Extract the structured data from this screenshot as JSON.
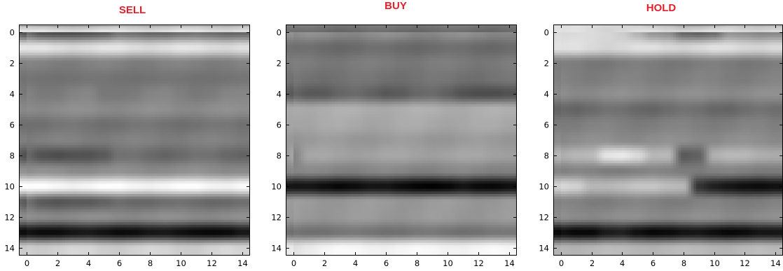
{
  "chart_data": [
    {
      "type": "heatmap",
      "title": "SELL",
      "colormap": "gray",
      "interpolation": "bicubic",
      "xlim": [
        -0.5,
        14.5
      ],
      "ylim": [
        14.5,
        -0.5
      ],
      "x_ticks": [
        0,
        2,
        4,
        6,
        8,
        10,
        12,
        14
      ],
      "y_ticks": [
        0,
        2,
        4,
        6,
        8,
        10,
        12,
        14
      ],
      "x_tick_labels": [
        "0",
        "2",
        "4",
        "6",
        "8",
        "10",
        "12",
        "14"
      ],
      "y_tick_labels": [
        "0",
        "2",
        "4",
        "6",
        "8",
        "10",
        "12",
        "14"
      ],
      "row_levels": [
        0.42,
        0.88,
        0.5,
        0.45,
        0.5,
        0.55,
        0.45,
        0.5,
        0.42,
        0.55,
        0.98,
        0.42,
        0.55,
        0.06,
        0.82
      ],
      "row_variation": [
        0.03,
        0.03,
        0.02,
        0.01,
        0.03,
        0.02,
        0.02,
        0.02,
        0.03,
        0.02,
        0.03,
        0.02,
        0.02,
        0.03,
        0.03
      ],
      "cells": [
        [
          0,
          1,
          0.32
        ],
        [
          0,
          2,
          0.3
        ],
        [
          0,
          3,
          0.3
        ],
        [
          0,
          4,
          0.32
        ],
        [
          0,
          5,
          0.35
        ],
        [
          4,
          5,
          0.47
        ],
        [
          4,
          6,
          0.47
        ],
        [
          8,
          1,
          0.32
        ],
        [
          8,
          2,
          0.3
        ],
        [
          8,
          3,
          0.32
        ],
        [
          8,
          4,
          0.32
        ],
        [
          8,
          5,
          0.35
        ],
        [
          11,
          1,
          0.35
        ],
        [
          11,
          2,
          0.33
        ],
        [
          11,
          3,
          0.35
        ],
        [
          11,
          4,
          0.35
        ],
        [
          11,
          5,
          0.38
        ],
        [
          13,
          11,
          0.03
        ],
        [
          13,
          12,
          0.02
        ],
        [
          13,
          13,
          0.03
        ]
      ]
    },
    {
      "type": "heatmap",
      "title": "BUY",
      "colormap": "gray",
      "interpolation": "bicubic",
      "xlim": [
        -0.5,
        14.5
      ],
      "ylim": [
        14.5,
        -0.5
      ],
      "x_ticks": [
        0,
        2,
        4,
        6,
        8,
        10,
        12,
        14
      ],
      "y_ticks": [
        0,
        2,
        4,
        6,
        8,
        10,
        12,
        14
      ],
      "x_tick_labels": [
        "0",
        "2",
        "4",
        "6",
        "8",
        "10",
        "12",
        "14"
      ],
      "y_tick_labels": [
        "0",
        "2",
        "4",
        "6",
        "8",
        "10",
        "12",
        "14"
      ],
      "row_levels": [
        0.55,
        0.42,
        0.48,
        0.45,
        0.38,
        0.68,
        0.66,
        0.6,
        0.64,
        0.52,
        0.05,
        0.6,
        0.6,
        0.45,
        0.96
      ],
      "row_variation": [
        0.03,
        0.02,
        0.02,
        0.02,
        0.04,
        0.02,
        0.02,
        0.02,
        0.02,
        0.02,
        0.03,
        0.02,
        0.02,
        0.02,
        0.02
      ],
      "cells": [
        [
          4,
          11,
          0.32
        ],
        [
          4,
          12,
          0.3
        ],
        [
          4,
          13,
          0.3
        ],
        [
          4,
          14,
          0.32
        ],
        [
          10,
          8,
          0.01
        ],
        [
          10,
          9,
          0.0
        ],
        [
          10,
          10,
          0.02
        ],
        [
          8,
          0,
          0.52
        ],
        [
          14,
          0,
          0.88
        ],
        [
          14,
          1,
          0.92
        ]
      ]
    },
    {
      "type": "heatmap",
      "title": "HOLD",
      "colormap": "gray",
      "interpolation": "bicubic",
      "xlim": [
        -0.5,
        14.5
      ],
      "ylim": [
        14.5,
        -0.5
      ],
      "x_ticks": [
        0,
        2,
        4,
        6,
        8,
        10,
        12,
        14
      ],
      "y_ticks": [
        0,
        2,
        4,
        6,
        8,
        10,
        12,
        14
      ],
      "x_tick_labels": [
        "0",
        "2",
        "4",
        "6",
        "8",
        "10",
        "12",
        "14"
      ],
      "y_tick_labels": [
        "0",
        "2",
        "4",
        "6",
        "8",
        "10",
        "12",
        "14"
      ],
      "row_levels": [
        0.55,
        0.86,
        0.48,
        0.5,
        0.55,
        0.42,
        0.5,
        0.55,
        0.7,
        0.5,
        0.75,
        0.5,
        0.55,
        0.05,
        0.72
      ],
      "row_variation": [
        0.03,
        0.03,
        0.02,
        0.02,
        0.02,
        0.03,
        0.02,
        0.02,
        0.03,
        0.02,
        0.03,
        0.02,
        0.02,
        0.03,
        0.02
      ],
      "cells": [
        [
          0,
          0,
          0.85
        ],
        [
          0,
          1,
          0.86
        ],
        [
          0,
          2,
          0.86
        ],
        [
          0,
          3,
          0.84
        ],
        [
          0,
          4,
          0.8
        ],
        [
          0,
          5,
          0.7
        ],
        [
          0,
          8,
          0.4
        ],
        [
          0,
          9,
          0.38
        ],
        [
          0,
          10,
          0.42
        ],
        [
          8,
          3,
          0.9
        ],
        [
          8,
          4,
          0.92
        ],
        [
          8,
          5,
          0.86
        ],
        [
          8,
          8,
          0.35
        ],
        [
          8,
          9,
          0.38
        ],
        [
          10,
          0,
          0.85
        ],
        [
          10,
          1,
          0.82
        ],
        [
          10,
          2,
          0.72
        ],
        [
          10,
          9,
          0.2
        ],
        [
          10,
          10,
          0.12
        ],
        [
          10,
          11,
          0.08
        ],
        [
          10,
          12,
          0.05
        ],
        [
          10,
          13,
          0.04
        ],
        [
          10,
          14,
          0.06
        ],
        [
          13,
          3,
          0.1
        ],
        [
          13,
          4,
          0.12
        ]
      ]
    }
  ]
}
